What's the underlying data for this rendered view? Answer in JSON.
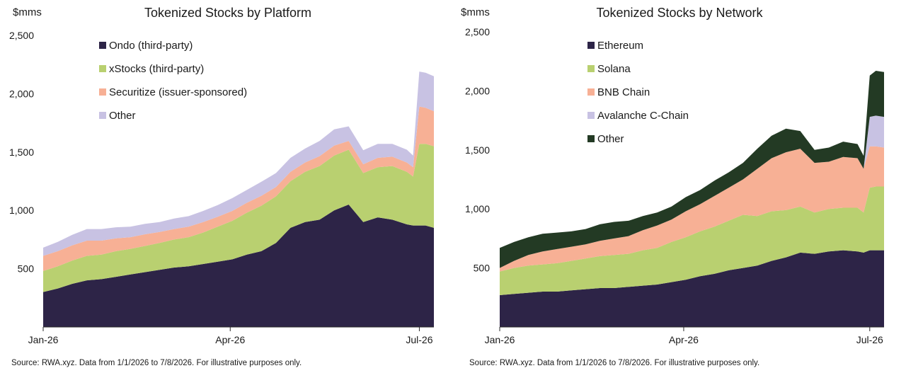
{
  "source_note": "Source: RWA.xyz. Data from 1/1/2026 to 7/8/2026. For illustrative purposes only.",
  "chart_data": [
    {
      "type": "area",
      "stacked": true,
      "title": "Tokenized Stocks by Platform",
      "ylabel": "$mms",
      "ylim": [
        0,
        2500
      ],
      "yticks": [
        500,
        1000,
        1500,
        2000,
        2500
      ],
      "ytick_labels": [
        "500",
        "1,000",
        "1,500",
        "2,000",
        "2,500"
      ],
      "xlim": [
        "2026-01-01",
        "2026-07-08"
      ],
      "xticks": [
        "2026-01-01",
        "2026-04-01",
        "2026-07-01"
      ],
      "xtick_labels": [
        "Jan-26",
        "Apr-26",
        "Jul-26"
      ],
      "legend_position": "top-left",
      "grid": false,
      "x": [
        "2026-01-01",
        "2026-01-08",
        "2026-01-15",
        "2026-01-22",
        "2026-01-29",
        "2026-02-05",
        "2026-02-12",
        "2026-02-19",
        "2026-02-26",
        "2026-03-05",
        "2026-03-12",
        "2026-03-19",
        "2026-03-26",
        "2026-04-02",
        "2026-04-09",
        "2026-04-16",
        "2026-04-23",
        "2026-04-30",
        "2026-05-07",
        "2026-05-14",
        "2026-05-21",
        "2026-05-28",
        "2026-06-04",
        "2026-06-11",
        "2026-06-18",
        "2026-06-25",
        "2026-06-28",
        "2026-07-01",
        "2026-07-04",
        "2026-07-08"
      ],
      "series": [
        {
          "name": "Ondo (third-party)",
          "color": "#2d2447",
          "values": [
            300,
            330,
            370,
            400,
            410,
            430,
            450,
            470,
            490,
            510,
            520,
            540,
            560,
            580,
            620,
            650,
            720,
            850,
            900,
            920,
            1000,
            1050,
            900,
            940,
            920,
            880,
            870,
            870,
            870,
            850
          ]
        },
        {
          "name": "xStocks (third-party)",
          "color": "#b9d070",
          "values": [
            180,
            190,
            200,
            210,
            210,
            220,
            220,
            225,
            230,
            240,
            250,
            270,
            300,
            330,
            360,
            390,
            400,
            400,
            430,
            460,
            470,
            470,
            420,
            430,
            460,
            450,
            420,
            700,
            700,
            700
          ]
        },
        {
          "name": "Securitize (issuer-sponsored)",
          "color": "#f7b095",
          "values": [
            130,
            130,
            130,
            130,
            120,
            110,
            100,
            100,
            95,
            90,
            90,
            90,
            85,
            85,
            85,
            85,
            80,
            80,
            80,
            85,
            85,
            75,
            75,
            80,
            80,
            80,
            80,
            320,
            310,
            300
          ]
        },
        {
          "name": "Other",
          "color": "#c8c2e3",
          "values": [
            70,
            80,
            90,
            100,
            100,
            95,
            90,
            90,
            85,
            90,
            90,
            95,
            100,
            110,
            110,
            120,
            120,
            120,
            120,
            130,
            140,
            125,
            120,
            120,
            110,
            110,
            100,
            300,
            300,
            300
          ]
        }
      ]
    },
    {
      "type": "area",
      "stacked": true,
      "title": "Tokenized Stocks by Network",
      "ylabel": "$mms",
      "ylim": [
        0,
        2500
      ],
      "yticks": [
        500,
        1000,
        1500,
        2000,
        2500
      ],
      "ytick_labels": [
        "500",
        "1,000",
        "1,500",
        "2,000",
        "2,500"
      ],
      "xlim": [
        "2026-01-01",
        "2026-07-08"
      ],
      "xticks": [
        "2026-01-01",
        "2026-04-01",
        "2026-07-01"
      ],
      "xtick_labels": [
        "Jan-26",
        "Apr-26",
        "Jul-26"
      ],
      "legend_position": "top-left",
      "grid": false,
      "x": [
        "2026-01-01",
        "2026-01-08",
        "2026-01-15",
        "2026-01-22",
        "2026-01-29",
        "2026-02-05",
        "2026-02-12",
        "2026-02-19",
        "2026-02-26",
        "2026-03-05",
        "2026-03-12",
        "2026-03-19",
        "2026-03-26",
        "2026-04-02",
        "2026-04-09",
        "2026-04-16",
        "2026-04-23",
        "2026-04-30",
        "2026-05-07",
        "2026-05-14",
        "2026-05-21",
        "2026-05-28",
        "2026-06-04",
        "2026-06-11",
        "2026-06-18",
        "2026-06-25",
        "2026-06-28",
        "2026-07-01",
        "2026-07-04",
        "2026-07-08"
      ],
      "series": [
        {
          "name": "Ethereum",
          "color": "#2d2447",
          "values": [
            270,
            280,
            290,
            300,
            300,
            310,
            320,
            330,
            330,
            340,
            350,
            360,
            380,
            400,
            430,
            450,
            480,
            500,
            520,
            560,
            590,
            630,
            620,
            640,
            650,
            640,
            630,
            650,
            650,
            650
          ]
        },
        {
          "name": "Solana",
          "color": "#b9d070",
          "values": [
            200,
            220,
            230,
            230,
            240,
            250,
            260,
            270,
            280,
            280,
            300,
            310,
            340,
            360,
            380,
            400,
            420,
            450,
            420,
            420,
            400,
            390,
            350,
            360,
            360,
            370,
            340,
            530,
            540,
            540
          ]
        },
        {
          "name": "BNB Chain",
          "color": "#f7b095",
          "values": [
            30,
            60,
            90,
            110,
            120,
            120,
            120,
            130,
            140,
            150,
            170,
            190,
            190,
            220,
            230,
            260,
            280,
            300,
            400,
            450,
            490,
            490,
            420,
            400,
            430,
            420,
            370,
            350,
            340,
            330
          ]
        },
        {
          "name": "Avalanche C-Chain",
          "color": "#c8c2e3",
          "values": [
            0,
            0,
            0,
            0,
            0,
            0,
            0,
            0,
            0,
            0,
            0,
            0,
            0,
            0,
            0,
            0,
            0,
            0,
            0,
            0,
            0,
            0,
            0,
            0,
            0,
            0,
            0,
            250,
            260,
            260
          ]
        },
        {
          "name": "Other",
          "color": "#233a24",
          "values": [
            170,
            160,
            150,
            150,
            140,
            130,
            130,
            140,
            140,
            130,
            120,
            110,
            110,
            120,
            120,
            130,
            130,
            140,
            170,
            190,
            200,
            150,
            110,
            120,
            130,
            120,
            110,
            350,
            380,
            380
          ]
        }
      ]
    }
  ]
}
